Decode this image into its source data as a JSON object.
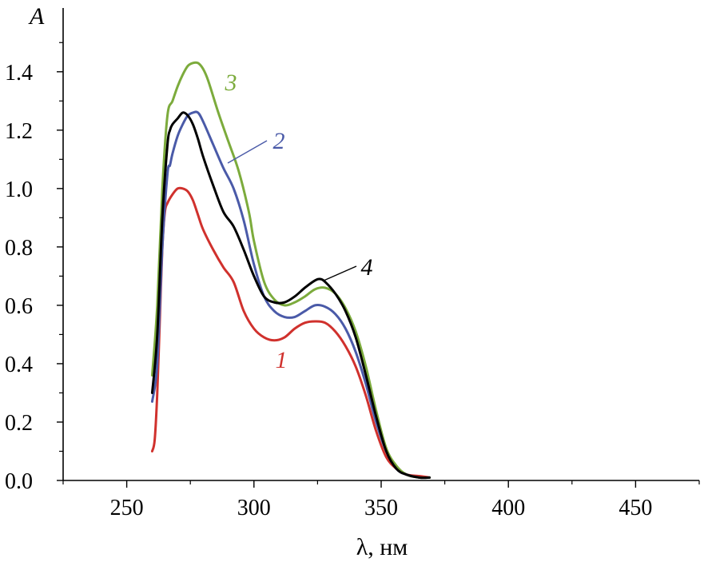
{
  "chart_data": {
    "type": "line",
    "title": "",
    "xlabel": "λ, нм",
    "ylabel": "A",
    "xlim": [
      225,
      475
    ],
    "ylim": [
      0.0,
      1.55
    ],
    "x_ticks": [
      250,
      300,
      350,
      400,
      450
    ],
    "x_tick_labels": [
      "250",
      "300",
      "350",
      "400",
      "450"
    ],
    "y_ticks": [
      0.0,
      0.2,
      0.4,
      0.6,
      0.8,
      1.0,
      1.2,
      1.4
    ],
    "y_tick_labels": [
      "0.0",
      "0.2",
      "0.4",
      "0.6",
      "0.8",
      "1.0",
      "1.2",
      "1.4"
    ],
    "grid": false,
    "series": [
      {
        "name": "1",
        "label": "1",
        "color": "#d0312d",
        "x": [
          260,
          261,
          262,
          263,
          264,
          265,
          266,
          268,
          270,
          272,
          274,
          276,
          278,
          280,
          284,
          288,
          292,
          296,
          300,
          304,
          308,
          312,
          316,
          320,
          324,
          328,
          332,
          336,
          340,
          344,
          348,
          352,
          356,
          360,
          365,
          369
        ],
        "y": [
          0.1,
          0.14,
          0.3,
          0.55,
          0.8,
          0.92,
          0.95,
          0.98,
          1.0,
          1.0,
          0.99,
          0.96,
          0.91,
          0.86,
          0.79,
          0.73,
          0.68,
          0.58,
          0.52,
          0.49,
          0.48,
          0.49,
          0.52,
          0.54,
          0.545,
          0.54,
          0.51,
          0.46,
          0.39,
          0.29,
          0.17,
          0.08,
          0.04,
          0.02,
          0.015,
          0.01
        ]
      },
      {
        "name": "2",
        "label": "2",
        "color": "#4a5aa8",
        "x": [
          260,
          262,
          264,
          266,
          267,
          268,
          270,
          272,
          274,
          276,
          278,
          280,
          284,
          288,
          292,
          296,
          300,
          304,
          308,
          312,
          316,
          320,
          324,
          328,
          332,
          336,
          340,
          344,
          348,
          352,
          356,
          360,
          365,
          369
        ],
        "y": [
          0.27,
          0.4,
          0.8,
          1.05,
          1.08,
          1.12,
          1.18,
          1.22,
          1.25,
          1.26,
          1.26,
          1.23,
          1.15,
          1.07,
          1.0,
          0.89,
          0.74,
          0.63,
          0.58,
          0.56,
          0.56,
          0.58,
          0.6,
          0.595,
          0.57,
          0.52,
          0.44,
          0.33,
          0.2,
          0.1,
          0.04,
          0.02,
          0.01,
          0.01
        ]
      },
      {
        "name": "3",
        "label": "3",
        "color": "#7cab3c",
        "x": [
          260,
          262,
          264,
          266,
          268,
          270,
          272,
          274,
          276,
          278,
          280,
          282,
          286,
          290,
          294,
          298,
          300,
          304,
          308,
          312,
          316,
          320,
          324,
          328,
          332,
          336,
          340,
          344,
          348,
          352,
          356,
          360,
          365,
          369
        ],
        "y": [
          0.36,
          0.6,
          1.0,
          1.25,
          1.3,
          1.35,
          1.39,
          1.42,
          1.43,
          1.43,
          1.41,
          1.37,
          1.26,
          1.16,
          1.06,
          0.92,
          0.82,
          0.68,
          0.62,
          0.6,
          0.61,
          0.63,
          0.655,
          0.66,
          0.64,
          0.59,
          0.51,
          0.39,
          0.24,
          0.11,
          0.05,
          0.02,
          0.01,
          0.01
        ]
      },
      {
        "name": "4",
        "label": "4",
        "color": "#000000",
        "x": [
          260,
          262,
          264,
          266,
          267,
          268,
          270,
          272,
          274,
          276,
          278,
          280,
          284,
          288,
          292,
          296,
          300,
          304,
          308,
          312,
          316,
          320,
          324,
          326,
          328,
          332,
          336,
          340,
          344,
          348,
          352,
          356,
          360,
          365,
          369
        ],
        "y": [
          0.3,
          0.5,
          0.9,
          1.15,
          1.2,
          1.22,
          1.24,
          1.26,
          1.25,
          1.22,
          1.17,
          1.11,
          1.01,
          0.92,
          0.87,
          0.79,
          0.7,
          0.63,
          0.61,
          0.61,
          0.63,
          0.66,
          0.685,
          0.69,
          0.68,
          0.64,
          0.58,
          0.49,
          0.36,
          0.22,
          0.1,
          0.04,
          0.02,
          0.01,
          0.01
        ]
      }
    ],
    "annotations": [
      {
        "series": "1",
        "text": "1"
      },
      {
        "series": "2",
        "text": "2"
      },
      {
        "series": "3",
        "text": "3"
      },
      {
        "series": "4",
        "text": "4"
      }
    ]
  }
}
